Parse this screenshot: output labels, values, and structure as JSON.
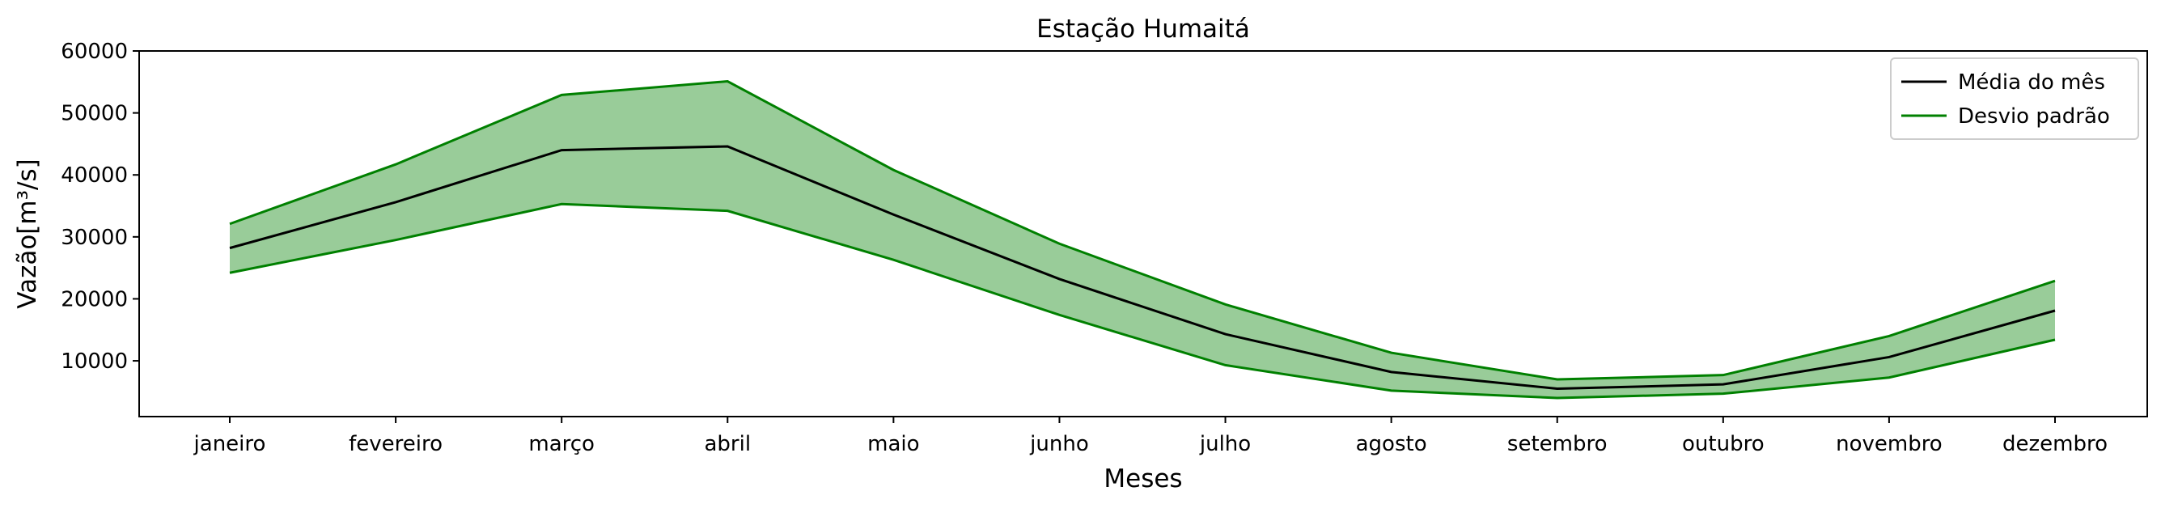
{
  "chart_data": {
    "type": "line",
    "title": "Estação Humaitá",
    "xlabel": "Meses",
    "ylabel": "Vazão[m³/s]",
    "categories": [
      "janeiro",
      "fevereiro",
      "março",
      "abril",
      "maio",
      "junho",
      "julho",
      "agosto",
      "setembro",
      "outubro",
      "novembro",
      "dezembro"
    ],
    "series": [
      {
        "name": "Média do mês",
        "color": "#000000",
        "values": [
          28200,
          35600,
          44000,
          44600,
          33600,
          23200,
          14300,
          8200,
          5500,
          6200,
          10600,
          18100
        ]
      },
      {
        "name": "Desvio padrão",
        "color": "#008000",
        "upper": [
          32100,
          41700,
          52900,
          55100,
          40800,
          28900,
          19100,
          11300,
          7000,
          7700,
          14000,
          22900
        ],
        "lower": [
          24200,
          29500,
          35300,
          34200,
          26300,
          17400,
          9300,
          5200,
          4000,
          4700,
          7300,
          13400
        ]
      }
    ],
    "band_fill_color": "#99cc99",
    "yticks": [
      10000,
      20000,
      30000,
      40000,
      50000,
      60000
    ],
    "ylim": [
      1000,
      60000
    ],
    "grid": false,
    "legend_position": "top-right"
  }
}
